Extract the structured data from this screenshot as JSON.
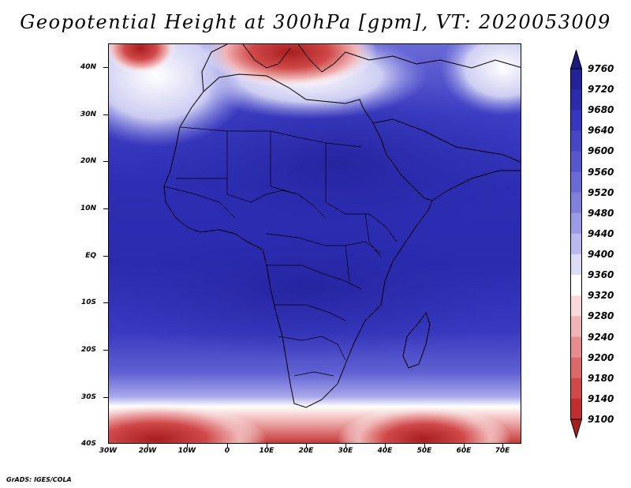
{
  "title": "Geopotential Height at 300hPa [gpm], VT: 2020053009",
  "map": {
    "variable": "Geopotential Height",
    "level": "300hPa",
    "units": "gpm",
    "valid_time": "2020053009",
    "region": "Africa",
    "lat_labels": [
      "40N",
      "30N",
      "20N",
      "10N",
      "EQ",
      "10S",
      "20S",
      "30S",
      "40S"
    ],
    "lon_labels": [
      "30W",
      "20W",
      "10W",
      "0",
      "10E",
      "20E",
      "30E",
      "40E",
      "50E",
      "60E",
      "70E"
    ]
  },
  "colorbar": {
    "labels": [
      "9760",
      "9720",
      "9680",
      "9640",
      "9600",
      "9560",
      "9520",
      "9480",
      "9440",
      "9400",
      "9360",
      "9320",
      "9280",
      "9240",
      "9200",
      "9180",
      "9140",
      "9100"
    ],
    "colors": [
      "#1a1a80",
      "#22229a",
      "#2b2bb0",
      "#3636c0",
      "#4646c8",
      "#5656cf",
      "#6a6ad6",
      "#8080de",
      "#9c9ce6",
      "#babaef",
      "#dcdcf7",
      "#ffffff",
      "#f8d8d8",
      "#f0b4b4",
      "#e68c8c",
      "#dc6868",
      "#d04848",
      "#c02e2e",
      "#a81e1e"
    ]
  },
  "credit": "GrADS: IGES/COLA"
}
